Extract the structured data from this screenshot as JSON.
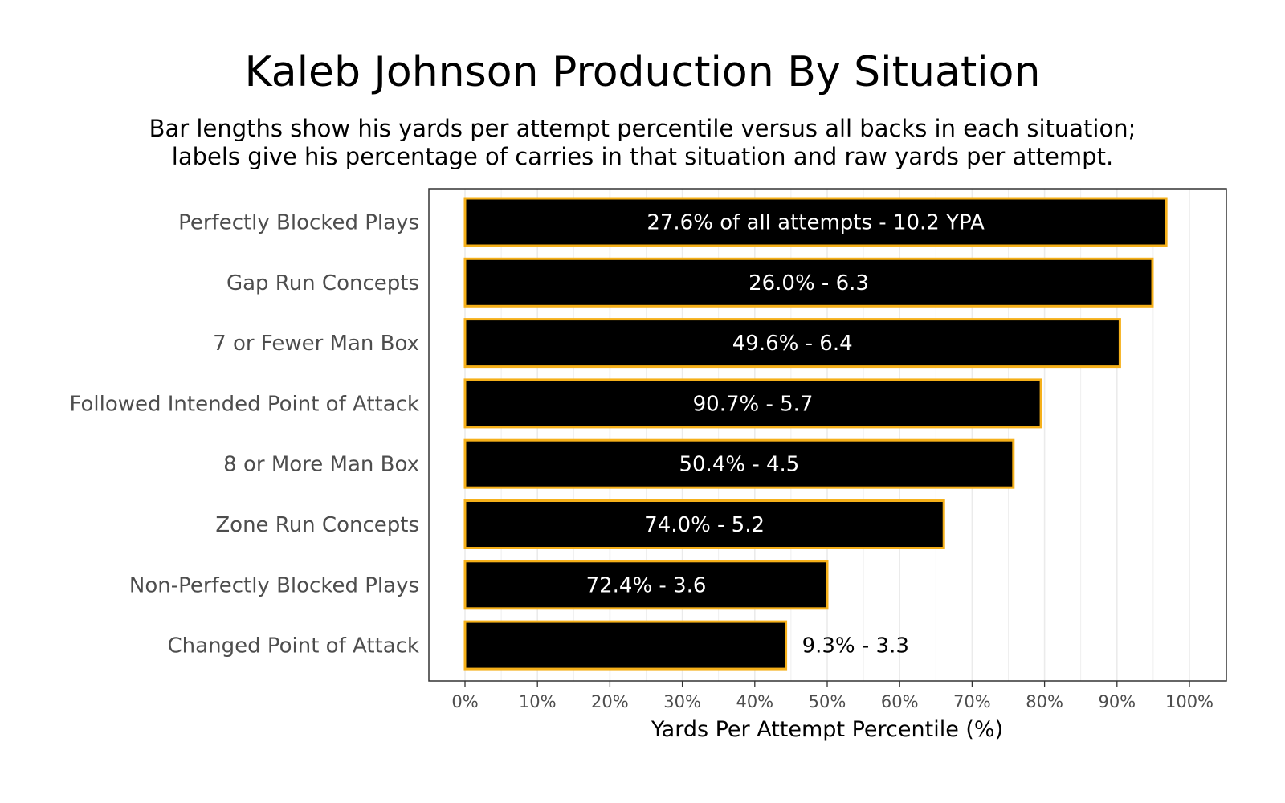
{
  "chart_data": {
    "type": "bar",
    "orientation": "horizontal",
    "title": "Kaleb Johnson Production By Situation",
    "subtitle": [
      "Bar lengths show his yards per attempt percentile versus all backs in each situation;",
      "labels give his percentage of carries in that situation and raw yards per attempt."
    ],
    "xlabel": "Yards Per Attempt Percentile (%)",
    "ylabel": "",
    "xlim": [
      0,
      100
    ],
    "xticks": [
      0,
      10,
      20,
      30,
      40,
      50,
      60,
      70,
      80,
      90,
      100
    ],
    "xtick_labels": [
      "0%",
      "10%",
      "20%",
      "30%",
      "40%",
      "50%",
      "60%",
      "70%",
      "80%",
      "90%",
      "100%"
    ],
    "grid": true,
    "legend": "none",
    "colors": {
      "bar_fill": "#000000",
      "bar_outline": "#f5b01a",
      "label_inside": "#ffffff",
      "label_outside": "#000000",
      "grid": "#ebebeb",
      "panel_border": "#333333"
    },
    "categories": [
      "Perfectly Blocked Plays",
      "Gap Run Concepts",
      "7 or Fewer Man Box",
      "Followed Intended Point of Attack",
      "8 or More Man Box",
      "Zone Run Concepts",
      "Non-Perfectly Blocked Plays",
      "Changed Point of Attack"
    ],
    "values": [
      96.8,
      94.9,
      90.4,
      79.5,
      75.7,
      66.1,
      50.0,
      44.3
    ],
    "labels": [
      "27.6% of all attempts - 10.2 YPA",
      "26.0% - 6.3",
      "49.6% - 6.4",
      "90.7% - 5.7",
      "50.4% - 4.5",
      "74.0% - 5.2",
      "72.4% - 3.6",
      "9.3% - 3.3"
    ],
    "label_position": [
      "inside",
      "inside",
      "inside",
      "inside",
      "inside",
      "inside",
      "inside",
      "outside"
    ]
  }
}
